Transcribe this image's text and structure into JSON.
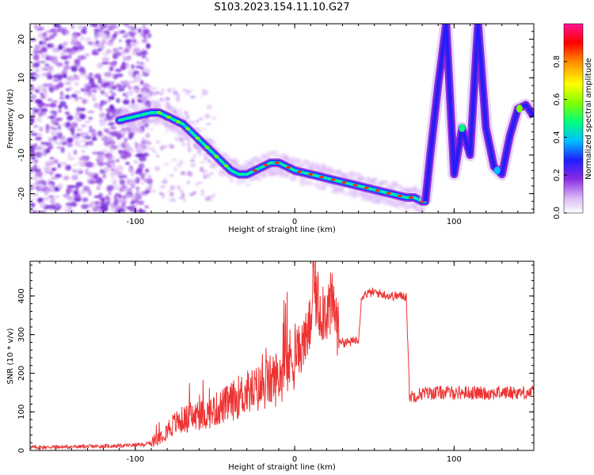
{
  "chart_data": [
    {
      "type": "heatmap",
      "title": "S103.2023.154.11.10.G27",
      "xlabel": "Height of straight line (km)",
      "ylabel": "Frequency (Hz)",
      "xlim": [
        -166,
        150
      ],
      "ylim": [
        -25,
        24
      ],
      "xticks": [
        -100,
        0,
        100
      ],
      "yticks": [
        20,
        10,
        0,
        -10,
        -20
      ],
      "colorbar": {
        "label": "Normalized spectral amplitude",
        "range": [
          0,
          1
        ],
        "ticks": [
          "0.0",
          "0.2",
          "0.4",
          "0.6",
          "0.8"
        ],
        "colormap": [
          "#ffffff",
          "#d9b8f5",
          "#8a2be2",
          "#1e1eff",
          "#00bfff",
          "#00ff7f",
          "#7fff00",
          "#ffff00",
          "#ff8c00",
          "#ff0000",
          "#ff1493"
        ]
      },
      "ridge": {
        "x": [
          -110,
          -100,
          -90,
          -85,
          -80,
          -75,
          -70,
          -65,
          -60,
          -55,
          -50,
          -45,
          -40,
          -35,
          -30,
          -25,
          -20,
          -15,
          -10,
          -5,
          0,
          10,
          20,
          30,
          40,
          50,
          60,
          70,
          75,
          80,
          82
        ],
        "y": [
          -1,
          0,
          1,
          1,
          0,
          -1,
          -2,
          -4,
          -6,
          -8,
          -10,
          -12,
          -14,
          -15,
          -15,
          -14,
          -13,
          -12,
          -12,
          -13,
          -14,
          -15,
          -16,
          -17,
          -18,
          -19,
          -20,
          -21,
          -21,
          -22,
          -22
        ]
      },
      "right_curves": {
        "x": [
          82,
          85,
          90,
          95,
          100,
          105,
          110,
          115,
          120,
          125,
          130,
          135,
          140,
          145,
          150
        ],
        "y": [
          -22,
          -10,
          8,
          24,
          -15,
          -3,
          -10,
          24,
          -3,
          -13,
          -15,
          -5,
          2,
          3,
          0
        ]
      }
    },
    {
      "type": "line",
      "title": "",
      "xlabel": "Height of straight line (km)",
      "ylabel": "SNR (10 * v/v)",
      "xlim": [
        -166,
        150
      ],
      "ylim": [
        0,
        490
      ],
      "xticks": [
        -100,
        0,
        100
      ],
      "yticks": [
        0,
        100,
        200,
        300,
        400
      ],
      "color": "#ee3333",
      "series": [
        {
          "x": [
            -166,
            -150,
            -130,
            -110,
            -95,
            -90,
            -85,
            -80,
            -75,
            -70,
            -65,
            -60,
            -55,
            -50,
            -45,
            -40,
            -35,
            -30,
            -25,
            -20,
            -15,
            -10,
            -5,
            0,
            5,
            8,
            10,
            12,
            15,
            20,
            25,
            28,
            30,
            35,
            40,
            42,
            44,
            50,
            55,
            60,
            65,
            70,
            72,
            73,
            80,
            90,
            100,
            110,
            120,
            130,
            140,
            150
          ],
          "y": [
            8,
            9,
            10,
            12,
            15,
            20,
            35,
            55,
            70,
            80,
            85,
            90,
            95,
            105,
            115,
            125,
            140,
            150,
            155,
            165,
            180,
            190,
            220,
            250,
            270,
            300,
            330,
            440,
            370,
            370,
            370,
            290,
            280,
            280,
            290,
            400,
            405,
            410,
            405,
            400,
            400,
            400,
            145,
            140,
            148,
            150,
            150,
            150,
            148,
            150,
            150,
            150
          ]
        }
      ]
    }
  ]
}
